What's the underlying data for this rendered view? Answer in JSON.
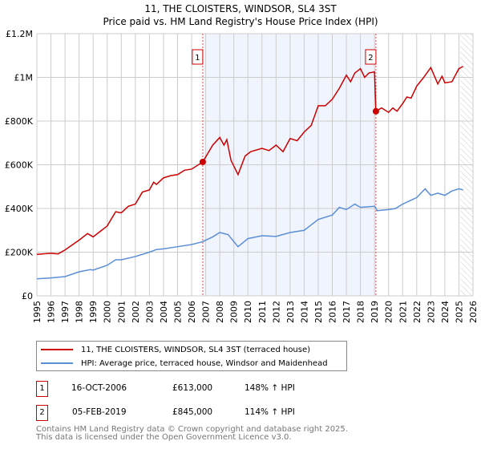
{
  "chart_data": {
    "type": "line",
    "title": "11, THE CLOISTERS, WINDSOR, SL4 3ST",
    "subtitle": "Price paid vs. HM Land Registry's House Price Index (HPI)",
    "xlim": [
      1995,
      2026
    ],
    "ylim": [
      0,
      1200000
    ],
    "x_ticks": [
      "1995",
      "1996",
      "1997",
      "1998",
      "1999",
      "2000",
      "2001",
      "2002",
      "2003",
      "2004",
      "2005",
      "2006",
      "2007",
      "2008",
      "2009",
      "2010",
      "2011",
      "2012",
      "2013",
      "2014",
      "2015",
      "2016",
      "2017",
      "2018",
      "2019",
      "2020",
      "2021",
      "2022",
      "2023",
      "2024",
      "2025",
      "2026"
    ],
    "y_ticks": [
      {
        "v": 0,
        "label": "£0"
      },
      {
        "v": 200000,
        "label": "£200K"
      },
      {
        "v": 400000,
        "label": "£400K"
      },
      {
        "v": 600000,
        "label": "£600K"
      },
      {
        "v": 800000,
        "label": "£800K"
      },
      {
        "v": 1000000,
        "label": "£1M"
      },
      {
        "v": 1200000,
        "label": "£1.2M"
      }
    ],
    "shaded_range": [
      2006.79,
      2019.1
    ],
    "forecast_from": 2025.1,
    "series": [
      {
        "name": "11, THE CLOISTERS, WINDSOR, SL4 3ST (terraced house)",
        "color": "#cc0000",
        "points": [
          [
            1995,
            190000
          ],
          [
            1996,
            195000
          ],
          [
            1996.5,
            192000
          ],
          [
            1997,
            210000
          ],
          [
            1998,
            255000
          ],
          [
            1998.6,
            285000
          ],
          [
            1999,
            270000
          ],
          [
            2000,
            320000
          ],
          [
            2000.6,
            385000
          ],
          [
            2001,
            380000
          ],
          [
            2001.5,
            410000
          ],
          [
            2002,
            420000
          ],
          [
            2002.5,
            475000
          ],
          [
            2003,
            485000
          ],
          [
            2003.3,
            520000
          ],
          [
            2003.5,
            510000
          ],
          [
            2004,
            540000
          ],
          [
            2004.5,
            550000
          ],
          [
            2005,
            555000
          ],
          [
            2005.5,
            575000
          ],
          [
            2006,
            580000
          ],
          [
            2006.79,
            613000
          ],
          [
            2007.5,
            690000
          ],
          [
            2008,
            725000
          ],
          [
            2008.3,
            690000
          ],
          [
            2008.5,
            715000
          ],
          [
            2008.8,
            620000
          ],
          [
            2009.3,
            555000
          ],
          [
            2009.8,
            640000
          ],
          [
            2010.2,
            660000
          ],
          [
            2011,
            675000
          ],
          [
            2011.5,
            665000
          ],
          [
            2012,
            690000
          ],
          [
            2012.5,
            660000
          ],
          [
            2013,
            720000
          ],
          [
            2013.5,
            710000
          ],
          [
            2014,
            750000
          ],
          [
            2014.5,
            780000
          ],
          [
            2015,
            870000
          ],
          [
            2015.5,
            870000
          ],
          [
            2016,
            900000
          ],
          [
            2016.5,
            950000
          ],
          [
            2017,
            1010000
          ],
          [
            2017.3,
            980000
          ],
          [
            2017.6,
            1020000
          ],
          [
            2018,
            1040000
          ],
          [
            2018.3,
            1000000
          ],
          [
            2018.6,
            1020000
          ],
          [
            2019,
            1025000
          ],
          [
            2019.1,
            845000
          ],
          [
            2019.5,
            860000
          ],
          [
            2020,
            840000
          ],
          [
            2020.3,
            860000
          ],
          [
            2020.6,
            845000
          ],
          [
            2021,
            880000
          ],
          [
            2021.3,
            910000
          ],
          [
            2021.6,
            905000
          ],
          [
            2022,
            960000
          ],
          [
            2022.5,
            1000000
          ],
          [
            2023,
            1045000
          ],
          [
            2023.5,
            970000
          ],
          [
            2023.8,
            1005000
          ],
          [
            2024,
            975000
          ],
          [
            2024.5,
            980000
          ],
          [
            2025,
            1040000
          ],
          [
            2025.3,
            1050000
          ]
        ]
      },
      {
        "name": "HPI: Average price, terraced house, Windsor and Maidenhead",
        "color": "#5b8fd6",
        "points": [
          [
            1995,
            78000
          ],
          [
            1996,
            82000
          ],
          [
            1997,
            88000
          ],
          [
            1998,
            110000
          ],
          [
            1998.8,
            120000
          ],
          [
            1999,
            118000
          ],
          [
            2000,
            140000
          ],
          [
            2000.6,
            165000
          ],
          [
            2001,
            165000
          ],
          [
            2002,
            180000
          ],
          [
            2003,
            200000
          ],
          [
            2003.5,
            212000
          ],
          [
            2004,
            215000
          ],
          [
            2005,
            225000
          ],
          [
            2006,
            235000
          ],
          [
            2006.79,
            248000
          ],
          [
            2007.5,
            270000
          ],
          [
            2008,
            290000
          ],
          [
            2008.6,
            280000
          ],
          [
            2009.3,
            225000
          ],
          [
            2010,
            262000
          ],
          [
            2011,
            275000
          ],
          [
            2012,
            272000
          ],
          [
            2013,
            290000
          ],
          [
            2014,
            300000
          ],
          [
            2015,
            350000
          ],
          [
            2016,
            370000
          ],
          [
            2016.5,
            405000
          ],
          [
            2017,
            395000
          ],
          [
            2017.6,
            420000
          ],
          [
            2018,
            405000
          ],
          [
            2019,
            410000
          ],
          [
            2019.2,
            390000
          ],
          [
            2020,
            395000
          ],
          [
            2020.5,
            400000
          ],
          [
            2021,
            420000
          ],
          [
            2022,
            450000
          ],
          [
            2022.6,
            490000
          ],
          [
            2023,
            460000
          ],
          [
            2023.5,
            470000
          ],
          [
            2024,
            460000
          ],
          [
            2024.5,
            480000
          ],
          [
            2025,
            490000
          ],
          [
            2025.3,
            485000
          ]
        ]
      }
    ],
    "sales": [
      {
        "id": "1",
        "x": 2006.79,
        "price": 613000,
        "date": "16-OCT-2006",
        "price_label": "£613,000",
        "hpi": "148% ↑ HPI"
      },
      {
        "id": "2",
        "x": 2019.1,
        "price": 845000,
        "date": "05-FEB-2019",
        "price_label": "£845,000",
        "hpi": "114% ↑ HPI"
      }
    ]
  },
  "footer": {
    "line1": "Contains HM Land Registry data © Crown copyright and database right 2025.",
    "line2": "This data is licensed under the Open Government Licence v3.0."
  }
}
